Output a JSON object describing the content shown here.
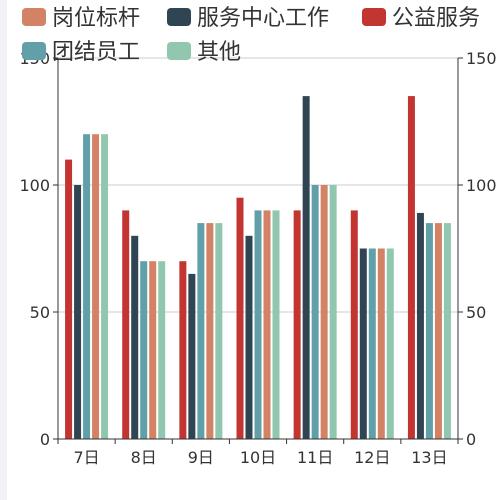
{
  "chart_data": {
    "type": "bar",
    "categories": [
      "7日",
      "8日",
      "9日",
      "10日",
      "11日",
      "12日",
      "13日"
    ],
    "series": [
      {
        "name": "岗位标杆",
        "color": "#d48265",
        "values": [
          120,
          70,
          85,
          90,
          100,
          75,
          85
        ]
      },
      {
        "name": "服务中心工作",
        "color": "#2f4554",
        "values": [
          100,
          80,
          65,
          80,
          135,
          75,
          89
        ]
      },
      {
        "name": "公益服务",
        "color": "#c23531",
        "values": [
          110,
          90,
          70,
          95,
          90,
          90,
          135
        ]
      },
      {
        "name": "团结员工",
        "color": "#61a0a8",
        "values": [
          120,
          70,
          85,
          90,
          100,
          75,
          85
        ]
      },
      {
        "name": "其他",
        "color": "#91c7ae",
        "values": [
          120,
          70,
          85,
          90,
          100,
          75,
          85
        ]
      }
    ],
    "bar_order": [
      "公益服务",
      "服务中心工作",
      "团结员工",
      "岗位标杆",
      "其他"
    ],
    "yticks": [
      "0",
      "50",
      "100",
      "150"
    ],
    "ylim": [
      0,
      150
    ],
    "right_axis": {
      "ylim": [
        0,
        150
      ],
      "yticks": [
        "0",
        "50",
        "100",
        "150"
      ]
    },
    "grid": true,
    "legend_position": "top-left"
  }
}
